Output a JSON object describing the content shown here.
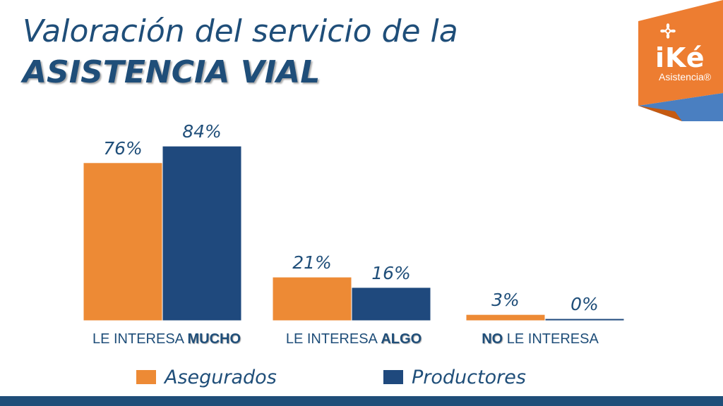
{
  "title": {
    "line1": "Valoración del servicio de la",
    "line2": "ASISTENCIA VIAL"
  },
  "logo": {
    "name": "iKé",
    "sub": "Asistencia®",
    "icon": "flower-icon",
    "colors": {
      "orange": "#ed7d31",
      "blue": "#4a7fc1"
    }
  },
  "chart_data": {
    "type": "bar",
    "categories": [
      {
        "parts": [
          {
            "text": "LE INTERESA ",
            "bold": false
          },
          {
            "text": "MUCHO",
            "bold": true
          }
        ]
      },
      {
        "parts": [
          {
            "text": "LE INTERESA ",
            "bold": false
          },
          {
            "text": "ALGO",
            "bold": true
          }
        ]
      },
      {
        "parts": [
          {
            "text": "NO",
            "bold": true
          },
          {
            "text": " LE INTERESA",
            "bold": false
          }
        ]
      }
    ],
    "series": [
      {
        "name": "Asegurados",
        "color": "#ed8a35",
        "values": [
          76,
          21,
          3
        ],
        "labels": [
          "76%",
          "21%",
          "3%"
        ]
      },
      {
        "name": "Productores",
        "color": "#1f497d",
        "values": [
          84,
          16,
          0
        ],
        "labels": [
          "84%",
          "16%",
          "0%"
        ]
      }
    ],
    "ylim": [
      0,
      100
    ],
    "grid": false,
    "legend_position": "bottom"
  }
}
